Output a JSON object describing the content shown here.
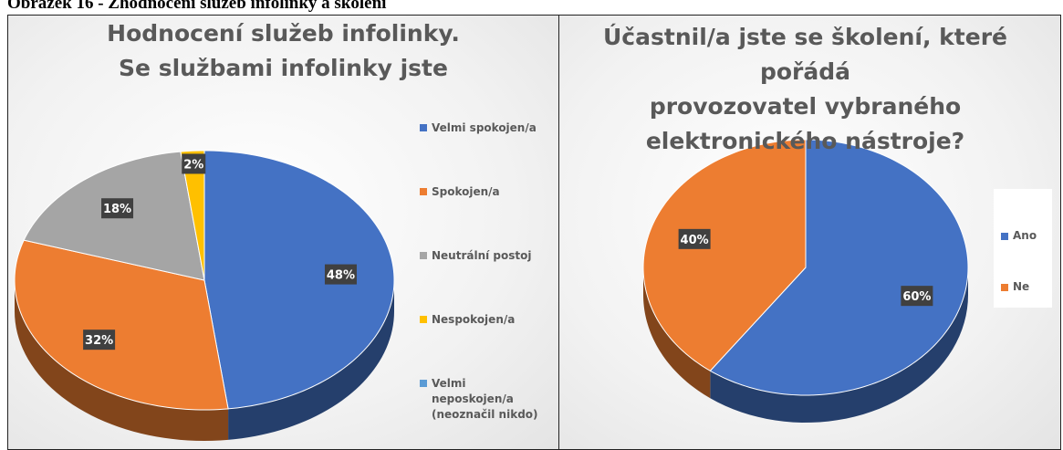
{
  "caption": "Obrázek 16 - Zhodnocení služeb infolinky a školení",
  "chart_data": [
    {
      "type": "pie3d",
      "title": [
        "Hodnocení služeb infolinky.",
        "Se službami infolinky jste"
      ],
      "categories": [
        "Velmi spokojen/a",
        "Spokojen/a",
        "Neutrální postoj",
        "Nespokojen/a",
        "Velmi neposkojen/a (neoznačil nikdo)"
      ],
      "values": [
        48,
        32,
        18,
        2,
        0
      ],
      "value_labels": [
        "48%",
        "32%",
        "18%",
        "2%",
        null
      ],
      "colors": [
        "#4472c4",
        "#ed7d31",
        "#a5a5a5",
        "#ffc000",
        "#5b9bd5"
      ],
      "legend": "right"
    },
    {
      "type": "pie3d",
      "title": [
        "Účastnil/a jste se školení, které pořádá",
        "provozovatel vybraného",
        "elektronického nástroje?"
      ],
      "categories": [
        "Ano",
        "Ne"
      ],
      "values": [
        60,
        40
      ],
      "value_labels": [
        "60%",
        "40%"
      ],
      "colors": [
        "#4472c4",
        "#ed7d31"
      ],
      "legend": "right"
    }
  ]
}
